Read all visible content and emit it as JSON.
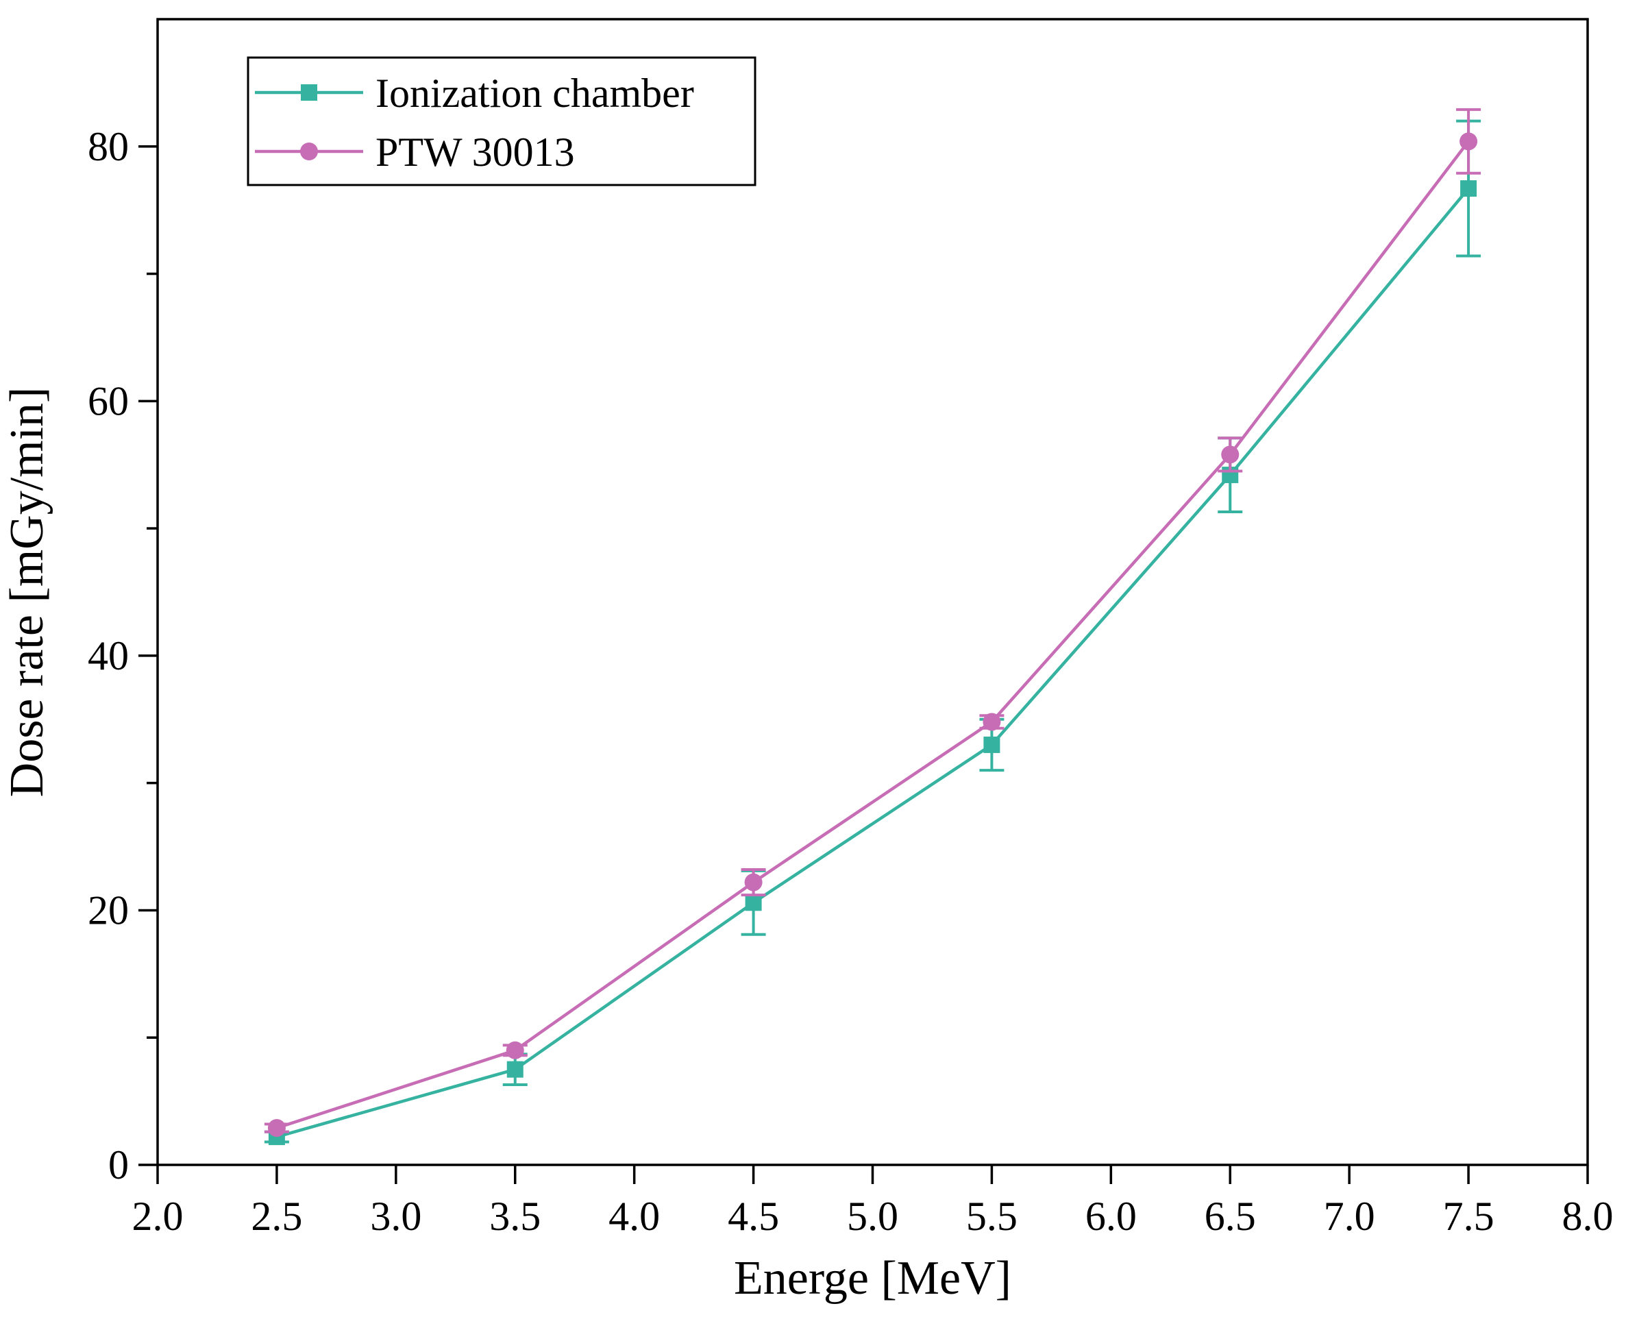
{
  "chart_data": {
    "type": "line",
    "xlabel": "Energe [MeV]",
    "ylabel": "Dose rate [mGy/min]",
    "xlim": [
      2.0,
      8.0
    ],
    "ylim": [
      0,
      90
    ],
    "x_ticks": [
      2.0,
      2.5,
      3.0,
      3.5,
      4.0,
      4.5,
      5.0,
      5.5,
      6.0,
      6.5,
      7.0,
      7.5,
      8.0
    ],
    "x_tick_labels": [
      "2.0",
      "2.5",
      "3.0",
      "3.5",
      "4.0",
      "4.5",
      "5.0",
      "5.5",
      "6.0",
      "6.5",
      "7.0",
      "7.5",
      "8.0"
    ],
    "y_major_ticks": [
      0,
      20,
      40,
      60,
      80
    ],
    "y_tick_labels": [
      "0",
      "20",
      "40",
      "60",
      "80"
    ],
    "y_minor_ticks": [
      10,
      30,
      50,
      70
    ],
    "legend_position": "top-left",
    "x": [
      2.5,
      3.5,
      4.5,
      5.5,
      6.5,
      7.5
    ],
    "series": [
      {
        "name": "Ionization chamber",
        "color": "#36b3a0",
        "marker": "square",
        "values": [
          2.2,
          7.5,
          20.6,
          33.0,
          54.2,
          76.7
        ],
        "errors": [
          0.4,
          1.2,
          2.5,
          2.0,
          2.9,
          5.3
        ]
      },
      {
        "name": "PTW 30013",
        "color": "#c76db5",
        "marker": "circle",
        "values": [
          2.9,
          9.0,
          22.2,
          34.8,
          55.8,
          80.4
        ],
        "errors": [
          0.3,
          0.4,
          1.0,
          0.5,
          1.3,
          2.5
        ]
      }
    ]
  }
}
